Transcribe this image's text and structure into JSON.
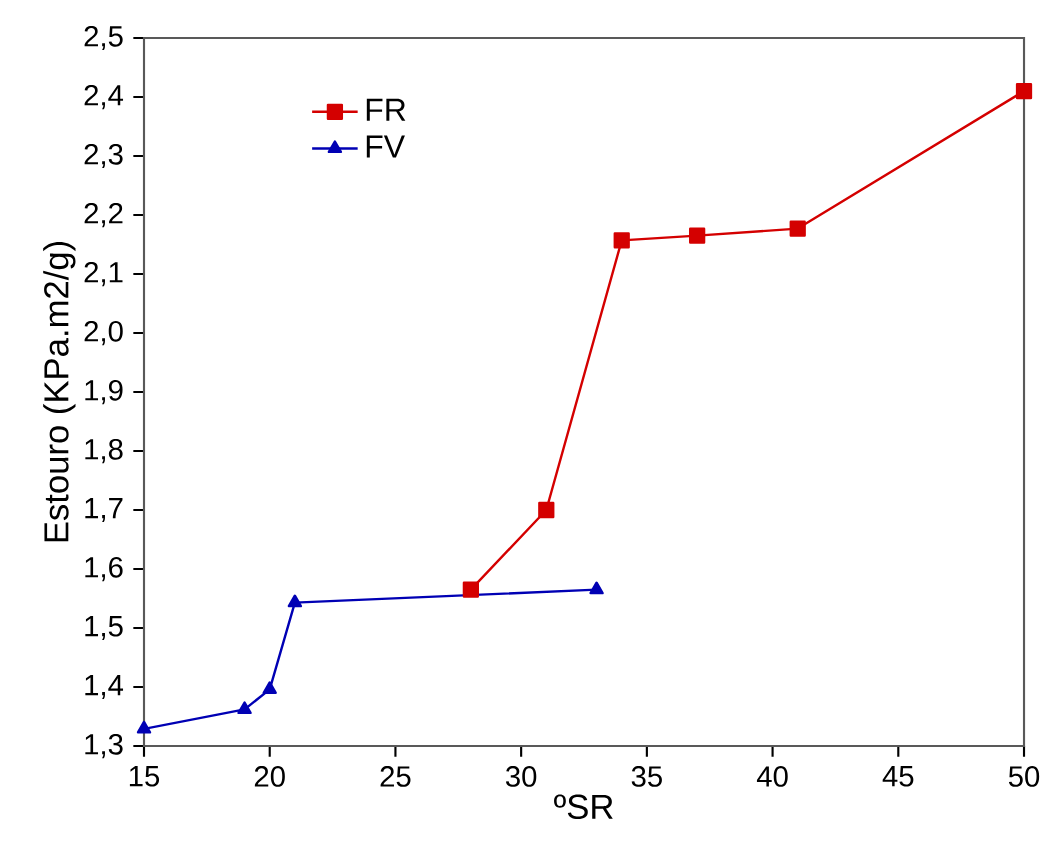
{
  "chart_data": {
    "type": "line",
    "xlabel": "ºSR",
    "ylabel": "Estouro (KPa.m2/g)",
    "xlim": [
      15,
      50
    ],
    "ylim": [
      1.3,
      2.5
    ],
    "xticks": [
      15,
      20,
      25,
      30,
      35,
      40,
      45,
      50
    ],
    "yticks": [
      {
        "value": 1.3,
        "label": "1,3"
      },
      {
        "value": 1.4,
        "label": "1,4"
      },
      {
        "value": 1.5,
        "label": "1,5"
      },
      {
        "value": 1.6,
        "label": "1,6"
      },
      {
        "value": 1.7,
        "label": "1,7"
      },
      {
        "value": 1.8,
        "label": "1,8"
      },
      {
        "value": 1.9,
        "label": "1,9"
      },
      {
        "value": 2.0,
        "label": "2,0"
      },
      {
        "value": 2.1,
        "label": "2,1"
      },
      {
        "value": 2.2,
        "label": "2,2"
      },
      {
        "value": 2.3,
        "label": "2,3"
      },
      {
        "value": 2.4,
        "label": "2,4"
      },
      {
        "value": 2.5,
        "label": "2,5"
      }
    ],
    "grid": false,
    "legend": "top left",
    "line_style": "solid",
    "series": [
      {
        "name": "FR",
        "color": "#d40000",
        "marker": "square",
        "x": [
          28,
          31,
          34,
          37,
          41,
          50
        ],
        "values": [
          1.565,
          1.7,
          2.157,
          2.165,
          2.177,
          2.41
        ]
      },
      {
        "name": "FV",
        "color": "#0000b4",
        "marker": "triangle",
        "x": [
          15,
          19,
          20,
          21,
          33
        ],
        "values": [
          1.329,
          1.362,
          1.396,
          1.543,
          1.565
        ]
      }
    ]
  }
}
